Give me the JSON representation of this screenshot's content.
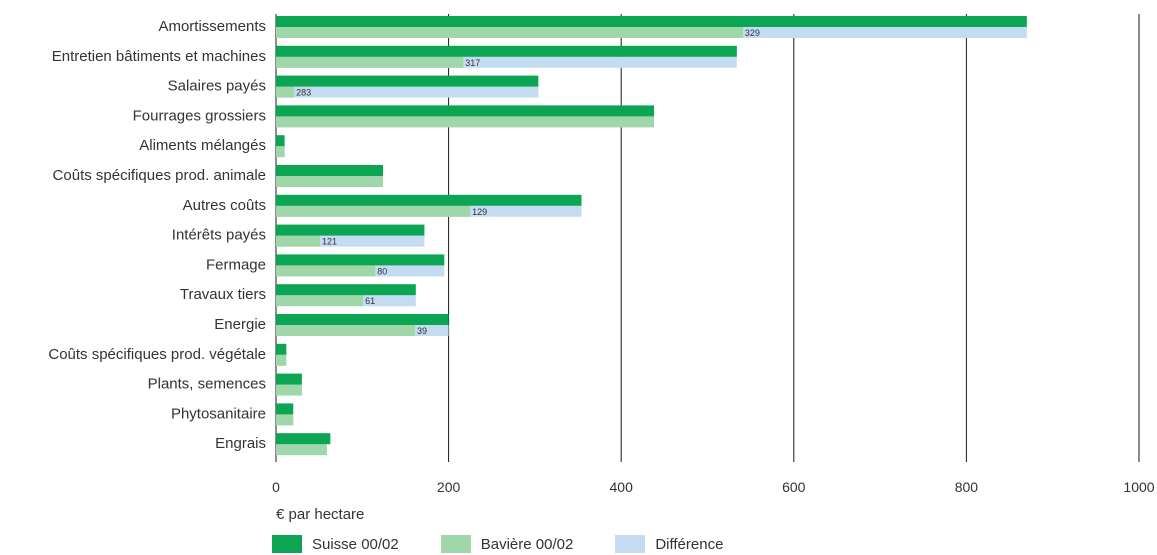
{
  "chart_data": {
    "type": "bar",
    "orientation": "horizontal",
    "title": "",
    "xlabel": "€ par hectare",
    "ylabel": "",
    "xlim": [
      0,
      1000
    ],
    "xticks": [
      "0",
      "200",
      "400",
      "600",
      "800",
      "1000"
    ],
    "grid": true,
    "legend_position": "bottom",
    "categories": [
      "Amortissements",
      "Entretien bâtiments et machines",
      "Salaires payés",
      "Fourrages grossiers",
      "Aliments mélangés",
      "Coûts spécifiques prod. animale",
      "Autres coûts",
      "Intérêts payés",
      "Fermage",
      "Travaux tiers",
      "Energie",
      "Coûts spécifiques prod. végétale",
      "Plants, semences",
      "Phytosanitaire",
      "Engrais"
    ],
    "series": [
      {
        "name": "Suisse 00/02",
        "color": "#0ba553",
        "values": [
          870,
          534,
          304,
          438,
          10,
          124,
          354,
          172,
          195,
          162,
          200,
          12,
          30,
          20,
          63
        ]
      },
      {
        "name": "Bavière 00/02",
        "color": "#9fd6aa",
        "values": [
          541,
          217,
          21,
          438,
          10,
          124,
          225,
          51,
          115,
          101,
          161,
          12,
          30,
          20,
          59
        ]
      },
      {
        "name": "Différence",
        "color": "#c4dcf1",
        "values": [
          870,
          534,
          304,
          null,
          null,
          null,
          354,
          172,
          195,
          162,
          200,
          null,
          null,
          null,
          null
        ]
      }
    ],
    "difference_labels": [
      "329",
      "317",
      "283",
      "",
      "",
      "",
      "129",
      "121",
      "80",
      "61",
      "39",
      "",
      "",
      "",
      ""
    ]
  }
}
